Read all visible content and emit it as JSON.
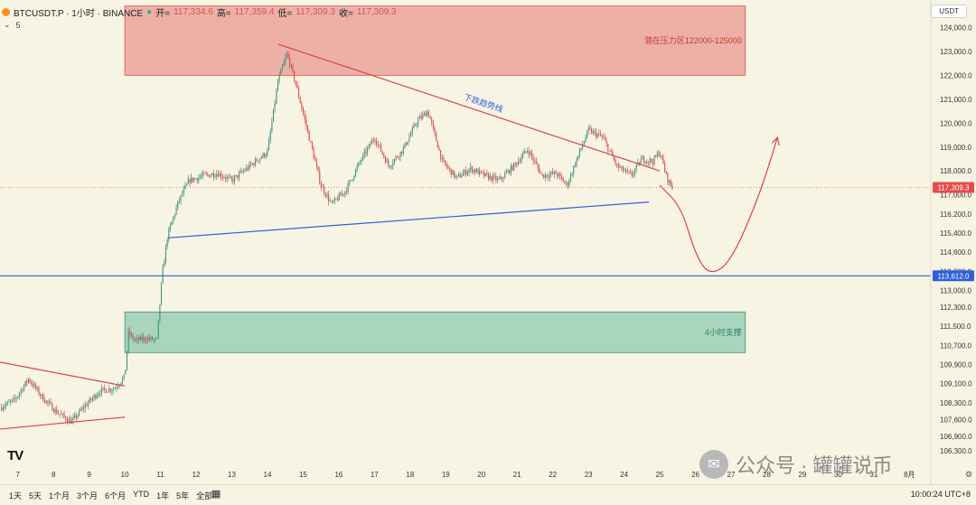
{
  "header": {
    "symbol": "BTCUSDT.P · 1小时 · BINANCE",
    "open_label": "开=",
    "open": "117,334.6",
    "high_label": "高=",
    "high": "117,359.4",
    "low_label": "低=",
    "low": "117,309.3",
    "close_label": "收=",
    "close": "117,309.3",
    "indicator_count": "5",
    "currency": "USDT"
  },
  "bottom_bar": {
    "ranges": [
      "1天",
      "5天",
      "1个月",
      "3个月",
      "6个月",
      "YTD",
      "1年",
      "5年",
      "全部"
    ],
    "clock": "10:00:24 UTC+8"
  },
  "watermark": {
    "text": "公众号 · 罐罐说币"
  },
  "colors": {
    "background": "#f8f4e3",
    "up_candle": "#3f8f7d",
    "down_candle": "#d94a4a",
    "resistance_zone": "#e99a93",
    "support_zone": "#8fcbb0",
    "trend_red": "#d9434a",
    "trend_blue": "#2f5ed8",
    "price_label": "#e44b4b",
    "level_label": "#2f5ed8"
  },
  "chart_data": {
    "type": "candlestick",
    "x_tick_labels": [
      "7",
      "8",
      "9",
      "10",
      "11",
      "12",
      "13",
      "14",
      "15",
      "16",
      "17",
      "18",
      "19",
      "20",
      "21",
      "22",
      "23",
      "24",
      "25",
      "26",
      "27",
      "28",
      "29",
      "30",
      "31",
      "8月"
    ],
    "y_ticks": [
      106300,
      106900,
      107600,
      108300,
      109100,
      109900,
      110700,
      111500,
      112300,
      113000,
      113800,
      114600,
      115400,
      116200,
      117000,
      118000,
      119000,
      120000,
      121000,
      122000,
      123000,
      124000
    ],
    "y_tick_labels": [
      "106,300.0",
      "106,900.0",
      "107,600.0",
      "108,300.0",
      "109,100.0",
      "109,900.0",
      "110,700.0",
      "111,500.0",
      "112,300.0",
      "113,000.0",
      "113,800.0",
      "114,600.0",
      "115,400.0",
      "116,200.0",
      "117,000.0",
      "118,000.0",
      "119,000.0",
      "120,000.0",
      "121,000.0",
      "122,000.0",
      "123,000.0",
      "124,000.0"
    ],
    "ylim": [
      105800,
      125000
    ],
    "day_range": [
      6.5,
      32.6
    ],
    "current_price": 117309.3,
    "current_price_label": "117,309.3",
    "horizontal_level": 113612,
    "horizontal_level_label": "113,612.0",
    "zones": [
      {
        "name": "resistance",
        "label": "潜在压力区122000-125000",
        "x_start": 10.0,
        "x_end": 27.4,
        "y_low": 122000,
        "y_high": 124900
      },
      {
        "name": "support",
        "label": "4小时支撑",
        "x_start": 10.0,
        "x_end": 27.4,
        "y_low": 110400,
        "y_high": 112100
      }
    ],
    "trendlines": [
      {
        "name": "downtrend",
        "label": "下跌趋势线",
        "color": "red",
        "x1": 14.3,
        "y1": 123300,
        "x2": 25.0,
        "y2": 118000
      },
      {
        "name": "support-trend",
        "color": "blue",
        "x1": 11.2,
        "y1": 115200,
        "x2": 24.7,
        "y2": 116700
      },
      {
        "name": "early-upper",
        "color": "red",
        "x1": 6.5,
        "y1": 110000,
        "x2": 10.0,
        "y2": 109000
      },
      {
        "name": "early-lower",
        "color": "red",
        "x1": 6.5,
        "y1": 107200,
        "x2": 10.0,
        "y2": 107700
      }
    ],
    "projection": [
      [
        25.0,
        117400
      ],
      [
        25.6,
        116500
      ],
      [
        26.0,
        114500
      ],
      [
        26.4,
        113612
      ],
      [
        27.0,
        114200
      ],
      [
        27.8,
        117000
      ],
      [
        28.3,
        119400
      ]
    ],
    "anchors": [
      [
        6.5,
        108100
      ],
      [
        6.9,
        108400
      ],
      [
        7.3,
        109300
      ],
      [
        7.7,
        108500
      ],
      [
        8.1,
        107900
      ],
      [
        8.5,
        107500
      ],
      [
        8.9,
        108200
      ],
      [
        9.3,
        108800
      ],
      [
        9.7,
        108900
      ],
      [
        10.0,
        109400
      ],
      [
        10.1,
        111200
      ],
      [
        10.3,
        110900
      ],
      [
        10.6,
        111000
      ],
      [
        10.9,
        110900
      ],
      [
        11.05,
        113700
      ],
      [
        11.2,
        115300
      ],
      [
        11.5,
        116700
      ],
      [
        11.8,
        117600
      ],
      [
        12.2,
        117800
      ],
      [
        12.6,
        117900
      ],
      [
        13.0,
        117600
      ],
      [
        13.5,
        118200
      ],
      [
        14.0,
        118800
      ],
      [
        14.3,
        121800
      ],
      [
        14.55,
        122900
      ],
      [
        14.8,
        121600
      ],
      [
        15.1,
        119800
      ],
      [
        15.5,
        117400
      ],
      [
        15.8,
        116600
      ],
      [
        16.2,
        117200
      ],
      [
        16.6,
        118400
      ],
      [
        17.0,
        119400
      ],
      [
        17.4,
        118200
      ],
      [
        17.8,
        118900
      ],
      [
        18.2,
        120100
      ],
      [
        18.5,
        120500
      ],
      [
        18.9,
        118400
      ],
      [
        19.3,
        117700
      ],
      [
        19.7,
        118100
      ],
      [
        20.1,
        117800
      ],
      [
        20.5,
        117600
      ],
      [
        20.9,
        118200
      ],
      [
        21.3,
        118900
      ],
      [
        21.7,
        117800
      ],
      [
        22.1,
        117900
      ],
      [
        22.4,
        117400
      ],
      [
        22.7,
        118600
      ],
      [
        23.0,
        119700
      ],
      [
        23.4,
        119400
      ],
      [
        23.8,
        118200
      ],
      [
        24.2,
        117800
      ],
      [
        24.5,
        118500
      ],
      [
        24.8,
        118400
      ],
      [
        25.0,
        118800
      ],
      [
        25.2,
        117700
      ],
      [
        25.35,
        117309
      ]
    ]
  }
}
